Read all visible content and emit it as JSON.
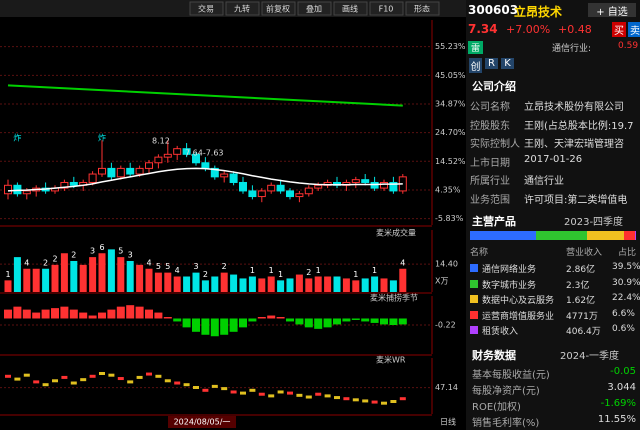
{
  "toolbar": {
    "buttons": [
      "交易",
      "九转",
      "前复权",
      "叠加",
      "画线",
      "F10",
      "形态"
    ]
  },
  "main_chart": {
    "ylim": [
      -8.1,
      64.7
    ],
    "yticks": [
      {
        "value": 55.23,
        "label": "55.23%"
      },
      {
        "value": 45.05,
        "label": "45.05%"
      },
      {
        "value": 34.87,
        "label": "34.87%"
      },
      {
        "value": 24.7,
        "label": "24.70%"
      },
      {
        "value": 14.52,
        "label": "14.52%"
      },
      {
        "value": 4.35,
        "label": "4.35%"
      },
      {
        "value": -5.83,
        "label": "-5.83%"
      }
    ],
    "candles": [
      [
        3,
        8,
        1,
        6
      ],
      [
        6,
        7,
        2,
        3
      ],
      [
        3,
        5,
        1,
        4
      ],
      [
        4,
        6,
        2,
        5
      ],
      [
        5,
        7,
        3,
        4
      ],
      [
        4,
        6,
        3,
        5
      ],
      [
        5,
        8,
        4,
        7
      ],
      [
        7,
        9,
        5,
        6
      ],
      [
        6,
        8,
        4,
        7
      ],
      [
        7,
        11,
        6,
        10
      ],
      [
        10,
        22,
        9,
        12
      ],
      [
        12,
        14,
        8,
        9
      ],
      [
        9,
        13,
        8,
        12
      ],
      [
        12,
        14,
        9,
        10
      ],
      [
        10,
        13,
        9,
        12
      ],
      [
        12,
        15,
        10,
        14
      ],
      [
        14,
        17,
        12,
        16
      ],
      [
        16,
        22,
        14,
        17
      ],
      [
        17,
        20,
        15,
        19
      ],
      [
        19,
        21,
        16,
        17
      ],
      [
        17,
        18,
        13,
        14
      ],
      [
        14,
        16,
        11,
        12
      ],
      [
        12,
        13,
        8,
        9
      ],
      [
        9,
        11,
        7,
        10
      ],
      [
        10,
        11,
        6,
        7
      ],
      [
        7,
        9,
        3,
        4
      ],
      [
        4,
        6,
        1,
        2
      ],
      [
        2,
        5,
        0,
        4
      ],
      [
        4,
        7,
        3,
        6
      ],
      [
        6,
        8,
        3,
        4
      ],
      [
        4,
        5,
        1,
        2
      ],
      [
        2,
        4,
        0,
        3
      ],
      [
        3,
        6,
        2,
        5
      ],
      [
        5,
        7,
        4,
        6
      ],
      [
        6,
        8,
        5,
        7
      ],
      [
        7,
        9,
        5,
        6
      ],
      [
        6,
        8,
        4,
        7
      ],
      [
        7,
        9,
        5,
        8
      ],
      [
        8,
        10,
        6,
        7
      ],
      [
        7,
        9,
        4,
        5
      ],
      [
        5,
        8,
        4,
        7
      ],
      [
        7,
        9,
        3,
        4
      ],
      [
        4,
        10,
        3,
        9
      ]
    ],
    "ma": [
      4,
      4.2,
      4.3,
      4.5,
      4.7,
      5,
      5.3,
      5.6,
      6,
      6.5,
      7.2,
      7.8,
      8.4,
      9,
      9.6,
      10.2,
      10.8,
      11.3,
      11.7,
      11.9,
      12,
      11.9,
      11.6,
      11.2,
      10.7,
      10.1,
      9.4,
      8.8,
      8.2,
      7.7,
      7.2,
      6.8,
      6.5,
      6.3,
      6.2,
      6.2,
      6.2,
      6.3,
      6.3,
      6.3,
      6.4,
      6.4,
      6.5
    ],
    "trend_line": [
      41.5,
      34.3
    ],
    "markers": [
      "炸",
      "炸"
    ],
    "price_labels": [
      "8.12",
      "7.64-7.63"
    ]
  },
  "volume_panel": {
    "title": "麦米成交量",
    "ylim": [
      0,
      32
    ],
    "yticks": [
      {
        "value": 14.4,
        "label": "14.40"
      }
    ],
    "unit": "X万",
    "values": [
      6,
      18,
      12,
      12,
      12,
      14,
      20,
      16,
      14,
      18,
      20,
      22,
      18,
      16,
      14,
      12,
      10,
      10,
      8,
      8,
      10,
      6,
      8,
      10,
      9,
      7,
      8,
      7,
      8,
      6,
      7,
      9,
      7,
      8,
      8,
      8,
      7,
      6,
      7,
      8,
      7,
      6,
      12
    ],
    "counts": [
      1,
      null,
      4,
      null,
      2,
      2,
      null,
      2,
      null,
      3,
      6,
      null,
      5,
      3,
      null,
      4,
      5,
      5,
      4,
      null,
      3,
      2,
      null,
      2,
      null,
      null,
      1,
      null,
      1,
      1,
      null,
      null,
      2,
      1,
      null,
      null,
      null,
      1,
      null,
      1,
      null,
      null,
      4
    ]
  },
  "season_panel": {
    "title": "麦米捕捞季节",
    "ylim": [
      -1.2,
      0.76
    ],
    "yticks": [
      -0.22
    ],
    "values": [
      0.3,
      0.4,
      0.3,
      0.2,
      0.3,
      0.35,
      0.4,
      0.3,
      0.2,
      0.1,
      0.2,
      0.3,
      0.4,
      0.45,
      0.4,
      0.3,
      0.2,
      0.05,
      -0.1,
      -0.3,
      -0.45,
      -0.55,
      -0.6,
      -0.55,
      -0.45,
      -0.3,
      -0.1,
      0.05,
      0.1,
      0.05,
      -0.1,
      -0.2,
      -0.3,
      -0.35,
      -0.3,
      -0.2,
      -0.1,
      -0.05,
      -0.1,
      -0.15,
      -0.2,
      -0.22,
      -0.2
    ]
  },
  "wr_panel": {
    "title": "麦米WR",
    "ylim": [
      0,
      100
    ],
    "yticks": [
      47.14
    ],
    "values": [
      70,
      65,
      72,
      60,
      55,
      62,
      68,
      58,
      64,
      70,
      75,
      72,
      66,
      60,
      68,
      74,
      70,
      62,
      58,
      55,
      50,
      45,
      52,
      48,
      42,
      40,
      45,
      38,
      35,
      42,
      40,
      36,
      33,
      38,
      35,
      32,
      30,
      28,
      26,
      24,
      22,
      25,
      30
    ]
  },
  "footer": {
    "date": "2024/08/05/一",
    "period": "日线"
  },
  "stock": {
    "code": "300603",
    "name": "立昂技术",
    "add_button": "+ 自选",
    "price": "7.34",
    "change_pct": "+7.00%",
    "change": "+0.48",
    "buy": "买",
    "sell": "卖",
    "industry": "通信行业:",
    "industry_change": "0.59",
    "badge": "雷",
    "tags": [
      "创",
      "R",
      "K"
    ]
  },
  "company": {
    "title": "公司介绍",
    "rows": [
      [
        "公司名称",
        "立昂技术股份有限公司"
      ],
      [
        "控股股东",
        "王刚(占总股本比例:19.7"
      ],
      [
        "实际控制人",
        "王刚、天津宏瑞管理咨"
      ],
      [
        "上市日期",
        "2017-01-26"
      ],
      [
        "所属行业",
        "通信行业"
      ],
      [
        "业务范围",
        "许可项目:第二类增值电"
      ]
    ]
  },
  "products": {
    "title": "主营产品",
    "period": "2023-四季度",
    "header": [
      "名称",
      "营业收入",
      "占比"
    ],
    "rows": [
      {
        "name": "通信网络业务",
        "revenue": "2.86亿",
        "share": 39.5,
        "share_label": "39.5%",
        "color": "#2d6cff"
      },
      {
        "name": "数字城市业务",
        "revenue": "2.3亿",
        "share": 30.9,
        "share_label": "30.9%",
        "color": "#2fc42f"
      },
      {
        "name": "数据中心及云服务",
        "revenue": "1.62亿",
        "share": 22.4,
        "share_label": "22.4%",
        "color": "#f0c020"
      },
      {
        "name": "运营商增值服务业",
        "revenue": "4771万",
        "share": 6.6,
        "share_label": "6.6%",
        "color": "#ff3030"
      },
      {
        "name": "租赁收入",
        "revenue": "406.4万",
        "share": 0.6,
        "share_label": "0.6%",
        "color": "#b040ff"
      }
    ]
  },
  "finance": {
    "title": "财务数据",
    "period": "2024-一季度",
    "rows": [
      [
        "基本每股收益(元)",
        "-0.05"
      ],
      [
        "每股净资产(元)",
        "3.044"
      ],
      [
        "ROE(加权)",
        "-1.69%"
      ],
      [
        "销售毛利率(%)",
        "11.55%"
      ]
    ]
  }
}
